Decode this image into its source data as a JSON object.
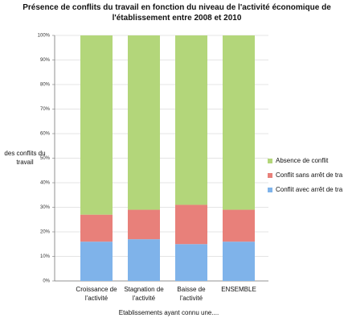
{
  "chart_data": {
    "type": "stacked_bar",
    "title": "Présence de conflits du travail en fonction du niveau de l'activité économique de l'établissement entre 2008 et 2010",
    "y_label": "des conflits du travail",
    "x_label": "Etablissements ayant connu une....",
    "categories": [
      "Croissance de l'activité",
      "Stagnation de l'activité",
      "Baisse de l'activité",
      "ENSEMBLE"
    ],
    "series": [
      {
        "name": "Conflit avec arrêt de tra",
        "color": "#7fb3ea",
        "values": [
          16,
          17,
          15,
          16
        ]
      },
      {
        "name": "Conflit sans arrêt de tra",
        "color": "#e8807a",
        "values": [
          11,
          12,
          16,
          13
        ]
      },
      {
        "name": "Absence de conflit",
        "color": "#b3d67a",
        "values": [
          73,
          71,
          69,
          71
        ]
      }
    ],
    "ylim": [
      0,
      100
    ],
    "yticks": [
      {
        "value": 0,
        "label": "0%"
      },
      {
        "value": 10,
        "label": "10%"
      },
      {
        "value": 20,
        "label": "20%"
      },
      {
        "value": 30,
        "label": "30%"
      },
      {
        "value": 40,
        "label": "40%"
      },
      {
        "value": 50,
        "label": "50%"
      },
      {
        "value": 60,
        "label": "60%"
      },
      {
        "value": 70,
        "label": "70%"
      },
      {
        "value": 80,
        "label": "80%"
      },
      {
        "value": 90,
        "label": "90%"
      },
      {
        "value": 100,
        "label": "100%"
      }
    ]
  }
}
